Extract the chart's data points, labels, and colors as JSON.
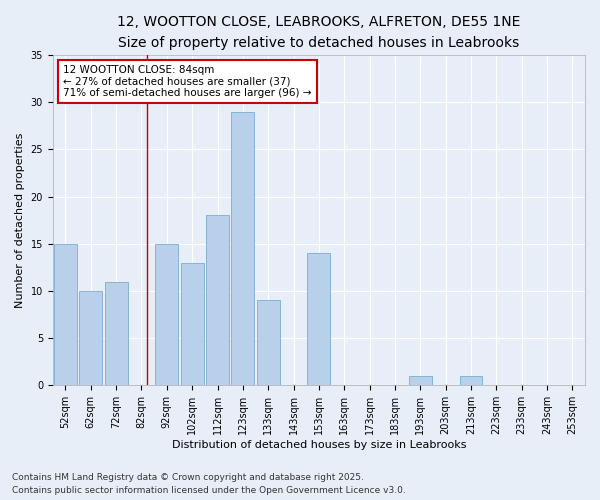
{
  "title_line1": "12, WOOTTON CLOSE, LEABROOKS, ALFRETON, DE55 1NE",
  "title_line2": "Size of property relative to detached houses in Leabrooks",
  "xlabel": "Distribution of detached houses by size in Leabrooks",
  "ylabel": "Number of detached properties",
  "categories": [
    "52sqm",
    "62sqm",
    "72sqm",
    "82sqm",
    "92sqm",
    "102sqm",
    "112sqm",
    "123sqm",
    "133sqm",
    "143sqm",
    "153sqm",
    "163sqm",
    "173sqm",
    "183sqm",
    "193sqm",
    "203sqm",
    "213sqm",
    "223sqm",
    "233sqm",
    "243sqm",
    "253sqm"
  ],
  "values": [
    15,
    10,
    11,
    0,
    15,
    13,
    18,
    29,
    9,
    0,
    14,
    0,
    0,
    0,
    1,
    0,
    1,
    0,
    0,
    0,
    0
  ],
  "bar_color": "#b8d0ea",
  "bar_edge_color": "#7aadd4",
  "background_color": "#e8eef8",
  "grid_color": "#d8dff0",
  "red_line_x": 3.2,
  "annotation_text": "12 WOOTTON CLOSE: 84sqm\n← 27% of detached houses are smaller (37)\n71% of semi-detached houses are larger (96) →",
  "annotation_box_color": "#ffffff",
  "annotation_box_edge_color": "#cc0000",
  "ylim": [
    0,
    35
  ],
  "yticks": [
    0,
    5,
    10,
    15,
    20,
    25,
    30,
    35
  ],
  "footer_line1": "Contains HM Land Registry data © Crown copyright and database right 2025.",
  "footer_line2": "Contains public sector information licensed under the Open Government Licence v3.0.",
  "title_fontsize": 10,
  "subtitle_fontsize": 9,
  "axis_label_fontsize": 8,
  "tick_fontsize": 7,
  "annotation_fontsize": 7.5,
  "footer_fontsize": 6.5
}
